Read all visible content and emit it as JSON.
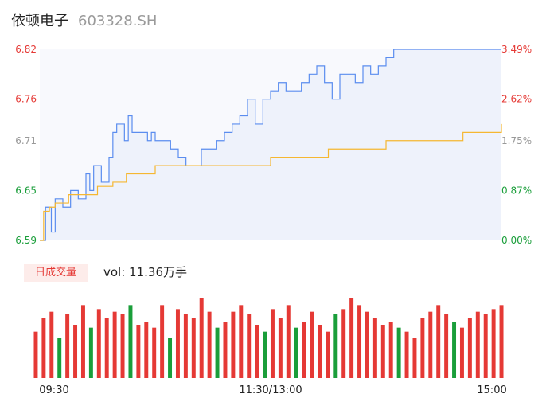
{
  "header": {
    "name": "依顿电子",
    "code": "603328.SH"
  },
  "volume_panel": {
    "badge": "日成交量",
    "vol_label": "vol: 11.36万手"
  },
  "colors": {
    "price": "#5b8def",
    "avg": "#f5b731",
    "up": "#e53935",
    "down": "#1a9e3a",
    "neutral": "#999999",
    "fill": "#eef2fb"
  },
  "chart_data": [
    {
      "type": "line",
      "title": "",
      "y_left_ticks": [
        "6.82",
        "6.76",
        "6.71",
        "6.65",
        "6.59"
      ],
      "y_right_ticks": [
        "3.49%",
        "2.62%",
        "1.75%",
        "0.87%",
        "0.00%"
      ],
      "ylim": [
        6.59,
        6.82
      ],
      "x_range_minutes": [
        0,
        240
      ],
      "series": [
        {
          "role": "price",
          "x": [
            0,
            3,
            6,
            8,
            12,
            16,
            20,
            24,
            26,
            28,
            32,
            36,
            38,
            40,
            44,
            46,
            48,
            52,
            56,
            58,
            60,
            64,
            68,
            70,
            72,
            76,
            80,
            84,
            88,
            92,
            96,
            100,
            104,
            108,
            112,
            116,
            120,
            124,
            128,
            132,
            136,
            140,
            144,
            148,
            152,
            156,
            160,
            164,
            168,
            172,
            176,
            180,
            184,
            188,
            192,
            196,
            200,
            204,
            208,
            212,
            216,
            220,
            224,
            228,
            232,
            236,
            240
          ],
          "y": [
            6.59,
            6.63,
            6.6,
            6.64,
            6.63,
            6.65,
            6.64,
            6.67,
            6.65,
            6.68,
            6.66,
            6.69,
            6.72,
            6.73,
            6.71,
            6.74,
            6.72,
            6.72,
            6.71,
            6.72,
            6.71,
            6.71,
            6.7,
            6.7,
            6.69,
            6.68,
            6.68,
            6.7,
            6.7,
            6.71,
            6.72,
            6.73,
            6.74,
            6.76,
            6.73,
            6.76,
            6.77,
            6.78,
            6.77,
            6.77,
            6.78,
            6.79,
            6.8,
            6.78,
            6.76,
            6.79,
            6.79,
            6.78,
            6.8,
            6.79,
            6.8,
            6.81,
            6.82,
            6.82,
            6.82,
            6.82,
            6.82,
            6.82,
            6.82,
            6.82,
            6.82,
            6.82,
            6.82,
            6.82,
            6.82,
            6.82,
            6.82
          ]
        },
        {
          "role": "average",
          "x": [
            0,
            2,
            5,
            8,
            15,
            30,
            38,
            45,
            60,
            70,
            80,
            90,
            100,
            110,
            120,
            130,
            150,
            160,
            180,
            200,
            220,
            240
          ],
          "y": [
            6.59,
            6.625,
            6.63,
            6.635,
            6.645,
            6.655,
            6.66,
            6.67,
            6.68,
            6.68,
            6.68,
            6.68,
            6.68,
            6.68,
            6.69,
            6.69,
            6.7,
            6.7,
            6.71,
            6.71,
            6.72,
            6.73
          ]
        }
      ]
    },
    {
      "type": "bar",
      "title": "",
      "x_tick_labels": [
        "09:30",
        "11:30/13:00",
        "15:00"
      ],
      "values": [
        35,
        45,
        50,
        30,
        48,
        40,
        55,
        38,
        52,
        45,
        50,
        48,
        55,
        40,
        42,
        38,
        55,
        30,
        52,
        48,
        45,
        60,
        50,
        38,
        42,
        50,
        55,
        48,
        40,
        35,
        52,
        45,
        55,
        38,
        42,
        50,
        40,
        35,
        48,
        52,
        60,
        55,
        50,
        45,
        40,
        42,
        38,
        35,
        30,
        45,
        50,
        55,
        48,
        42,
        38,
        45,
        50,
        48,
        52,
        55
      ],
      "colors": [
        "up",
        "up",
        "up",
        "down",
        "up",
        "up",
        "up",
        "down",
        "up",
        "up",
        "up",
        "up",
        "down",
        "up",
        "up",
        "up",
        "up",
        "down",
        "up",
        "up",
        "up",
        "up",
        "up",
        "down",
        "up",
        "up",
        "up",
        "up",
        "up",
        "down",
        "up",
        "up",
        "up",
        "down",
        "up",
        "up",
        "up",
        "up",
        "down",
        "up",
        "up",
        "up",
        "up",
        "up",
        "up",
        "up",
        "down",
        "up",
        "up",
        "up",
        "up",
        "up",
        "up",
        "down",
        "up",
        "up",
        "up",
        "up",
        "up",
        "up"
      ]
    }
  ]
}
